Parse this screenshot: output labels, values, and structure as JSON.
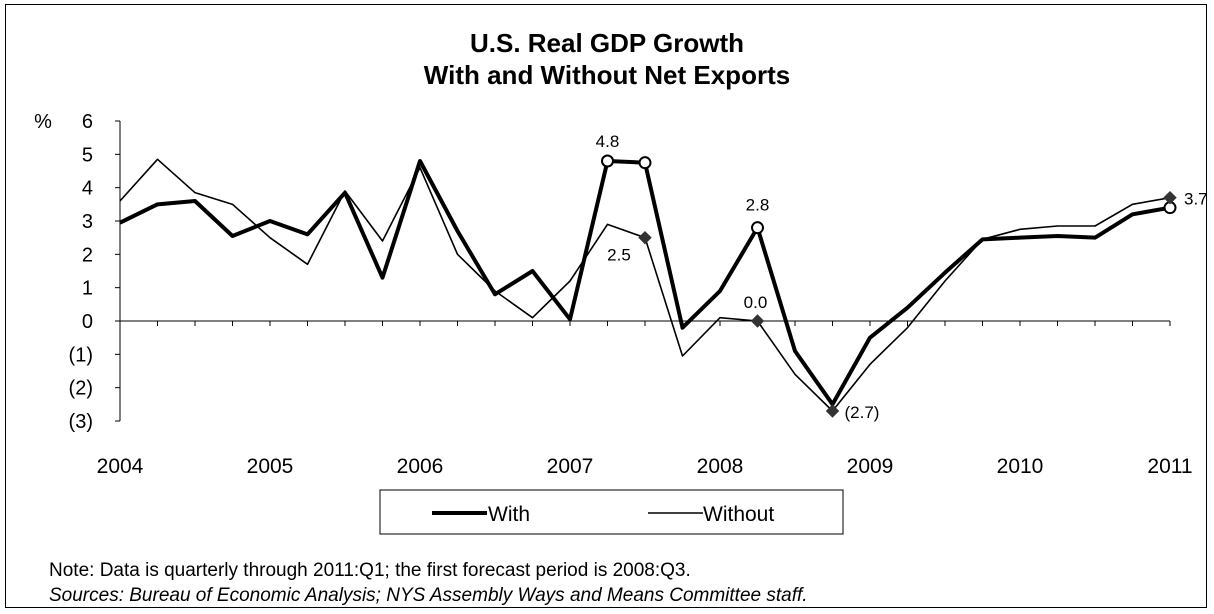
{
  "chart_data": {
    "type": "line",
    "title_lines": [
      "U.S. Real GDP Growth",
      "With and Without Net Exports"
    ],
    "ylabel": "%",
    "ylim": [
      -3,
      6
    ],
    "yticks": [
      6,
      5,
      4,
      3,
      2,
      1,
      0,
      -1,
      -2,
      -3
    ],
    "ytick_labels": [
      "6",
      "5",
      "4",
      "3",
      "2",
      "1",
      "0",
      "(1)",
      "(2)",
      "(3)"
    ],
    "xlim": [
      2004,
      2011
    ],
    "xticks": [
      2004,
      2005,
      2006,
      2007,
      2008,
      2009,
      2010,
      2011
    ],
    "xtick_labels": [
      "2004",
      "2005",
      "2006",
      "2007",
      "2008",
      "2009",
      "2010",
      "2011"
    ],
    "x": [
      2004.0,
      2004.25,
      2004.5,
      2004.75,
      2005.0,
      2005.25,
      2005.5,
      2005.75,
      2006.0,
      2006.25,
      2006.5,
      2006.75,
      2007.0,
      2007.25,
      2007.5,
      2007.75,
      2008.0,
      2008.25,
      2008.5,
      2008.75,
      2009.0,
      2009.25,
      2009.5,
      2009.75,
      2010.0,
      2010.25,
      2010.5,
      2010.75,
      2011.0
    ],
    "series": [
      {
        "name": "With",
        "color": "#000000",
        "values": [
          2.95,
          3.5,
          3.6,
          2.55,
          3.0,
          2.6,
          3.85,
          1.3,
          4.8,
          2.7,
          0.8,
          1.5,
          0.05,
          4.8,
          4.75,
          -0.2,
          0.9,
          2.8,
          -0.9,
          -2.5,
          -0.5,
          0.4,
          1.45,
          2.45,
          2.5,
          2.55,
          2.5,
          3.2,
          3.4
        ]
      },
      {
        "name": "Without",
        "color": "#000000",
        "values": [
          3.6,
          4.85,
          3.85,
          3.5,
          2.5,
          1.7,
          3.9,
          2.4,
          4.6,
          2.0,
          0.9,
          0.1,
          1.2,
          2.9,
          2.5,
          -1.05,
          0.1,
          0.0,
          -1.6,
          -2.7,
          -1.3,
          -0.2,
          1.2,
          2.45,
          2.75,
          2.85,
          2.85,
          3.5,
          3.7
        ]
      }
    ],
    "markers": [
      {
        "series": "With",
        "x": 2007.25,
        "style": "open-circle"
      },
      {
        "series": "With",
        "x": 2007.5,
        "style": "open-circle"
      },
      {
        "series": "With",
        "x": 2008.25,
        "style": "open-circle"
      },
      {
        "series": "With",
        "x": 2011.0,
        "style": "open-circle"
      },
      {
        "series": "Without",
        "x": 2007.5,
        "style": "diamond"
      },
      {
        "series": "Without",
        "x": 2008.25,
        "style": "diamond"
      },
      {
        "series": "Without",
        "x": 2008.75,
        "style": "diamond"
      },
      {
        "series": "Without",
        "x": 2011.0,
        "style": "diamond"
      }
    ],
    "annotations": [
      {
        "text": "4.8",
        "x": 2007.25,
        "y": 4.8
      },
      {
        "text": "2.5",
        "x": 2007.5,
        "y": 2.5
      },
      {
        "text": "2.8",
        "x": 2008.25,
        "y": 2.8
      },
      {
        "text": "0.0",
        "x": 2008.25,
        "y": 0.0
      },
      {
        "text": "(2.7)",
        "x": 2008.75,
        "y": -2.7
      },
      {
        "text": "3.7",
        "x": 2011.0,
        "y": 3.7
      }
    ],
    "legend": {
      "position": "bottom-center",
      "entries": [
        "With",
        "Without"
      ]
    },
    "grid": false
  },
  "notes": {
    "note": "Note: Data is quarterly through 2011:Q1; the first forecast period is 2008:Q3.",
    "sources": "Sources: Bureau of Economic Analysis; NYS Assembly Ways and Means Committee staff."
  }
}
